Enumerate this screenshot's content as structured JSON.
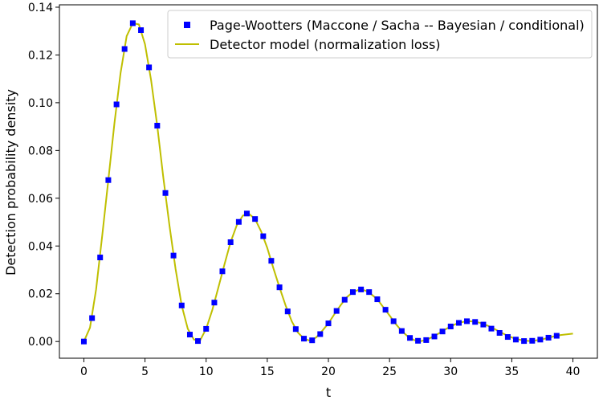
{
  "chart_data": {
    "type": "line",
    "title": "",
    "xlabel": "t",
    "ylabel": "Detection probability density",
    "xlim": [
      -2,
      42
    ],
    "ylim": [
      -0.007,
      0.141
    ],
    "xticks": [
      0,
      5,
      10,
      15,
      20,
      25,
      30,
      35,
      40
    ],
    "xtick_labels": [
      "0",
      "5",
      "10",
      "15",
      "20",
      "25",
      "30",
      "35",
      "40"
    ],
    "yticks": [
      0.0,
      0.02,
      0.04,
      0.06,
      0.08,
      0.1,
      0.12,
      0.14
    ],
    "ytick_labels": [
      "0.00",
      "0.02",
      "0.04",
      "0.06",
      "0.08",
      "0.10",
      "0.12",
      "0.14"
    ],
    "grid": false,
    "legend_position": "top-right",
    "colors": {
      "markers": "#0000ff",
      "line": "#bfbf00"
    },
    "series": [
      {
        "name": "Page-Wootters (Maccone / Sacha -- Bayesian / conditional)",
        "kind": "scatter",
        "x": [
          0.0,
          0.67,
          1.33,
          2.0,
          2.67,
          3.33,
          4.0,
          4.67,
          5.33,
          6.0,
          6.67,
          7.33,
          8.0,
          8.67,
          9.33,
          10.0,
          10.67,
          11.33,
          12.0,
          12.67,
          13.33,
          14.0,
          14.67,
          15.33,
          16.0,
          16.67,
          17.33,
          18.0,
          18.67,
          19.33,
          20.0,
          20.67,
          21.33,
          22.0,
          22.67,
          23.33,
          24.0,
          24.67,
          25.33,
          26.0,
          26.67,
          27.33,
          28.0,
          28.67,
          29.33,
          30.0,
          30.67,
          31.33,
          32.0,
          32.67,
          33.33,
          34.0,
          34.67,
          35.33,
          36.0,
          36.67,
          37.33,
          38.0,
          38.67
        ],
        "y": [
          0.0,
          0.0098,
          0.0352,
          0.0676,
          0.0993,
          0.1225,
          0.1333,
          0.1304,
          0.1148,
          0.0904,
          0.0622,
          0.036,
          0.0151,
          0.0029,
          0.0002,
          0.0053,
          0.0163,
          0.0294,
          0.0416,
          0.0501,
          0.0536,
          0.0513,
          0.0441,
          0.0338,
          0.0227,
          0.0126,
          0.0052,
          0.0012,
          0.0005,
          0.0031,
          0.0076,
          0.0128,
          0.0175,
          0.0207,
          0.0218,
          0.0207,
          0.0177,
          0.0133,
          0.0085,
          0.0044,
          0.0015,
          0.0003,
          0.0006,
          0.0021,
          0.0042,
          0.0063,
          0.0078,
          0.0085,
          0.0082,
          0.0071,
          0.0054,
          0.0036,
          0.0019,
          0.0008,
          0.0002,
          0.0003,
          0.0008,
          0.0016,
          0.0024
        ]
      },
      {
        "name": "Detector model (normalization loss)",
        "kind": "line",
        "x": [
          0.0,
          0.5,
          1.0,
          1.5,
          2.0,
          2.5,
          3.0,
          3.5,
          4.0,
          4.5,
          5.0,
          5.5,
          6.0,
          6.5,
          7.0,
          7.5,
          8.0,
          8.5,
          9.0,
          9.5,
          10.0,
          10.5,
          11.0,
          11.5,
          12.0,
          12.5,
          13.0,
          13.5,
          14.0,
          14.5,
          15.0,
          15.5,
          16.0,
          16.5,
          17.0,
          17.5,
          18.0,
          18.5,
          19.0,
          19.5,
          20.0,
          20.5,
          21.0,
          21.5,
          22.0,
          22.5,
          23.0,
          23.5,
          24.0,
          24.5,
          25.0,
          25.5,
          26.0,
          26.5,
          27.0,
          27.5,
          28.0,
          28.5,
          29.0,
          29.5,
          30.0,
          30.5,
          31.0,
          31.5,
          32.0,
          32.5,
          33.0,
          33.5,
          34.0,
          34.5,
          35.0,
          35.5,
          36.0,
          36.5,
          37.0,
          37.5,
          38.0,
          38.5,
          39.0,
          39.5,
          40.0
        ],
        "y": [
          0.0,
          0.0058,
          0.0218,
          0.0443,
          0.0676,
          0.0914,
          0.1124,
          0.1279,
          0.1333,
          0.1328,
          0.1245,
          0.1094,
          0.0904,
          0.0686,
          0.0486,
          0.0304,
          0.0151,
          0.0053,
          0.0008,
          0.0004,
          0.0053,
          0.0131,
          0.0226,
          0.0323,
          0.0416,
          0.0486,
          0.0527,
          0.0535,
          0.0513,
          0.0461,
          0.0392,
          0.0307,
          0.0227,
          0.0151,
          0.0085,
          0.0038,
          0.0012,
          0.0003,
          0.0017,
          0.0045,
          0.0076,
          0.0115,
          0.0152,
          0.0185,
          0.0207,
          0.0217,
          0.0214,
          0.0198,
          0.0177,
          0.0143,
          0.0109,
          0.0074,
          0.0044,
          0.0021,
          0.0006,
          0.0001,
          0.0006,
          0.0019,
          0.0033,
          0.0049,
          0.0063,
          0.0075,
          0.0082,
          0.0085,
          0.0083,
          0.0077,
          0.0067,
          0.0055,
          0.0041,
          0.0028,
          0.0017,
          0.0009,
          0.0004,
          0.0002,
          0.0005,
          0.0009,
          0.0016,
          0.0022,
          0.0027,
          0.003,
          0.0033
        ]
      }
    ]
  }
}
